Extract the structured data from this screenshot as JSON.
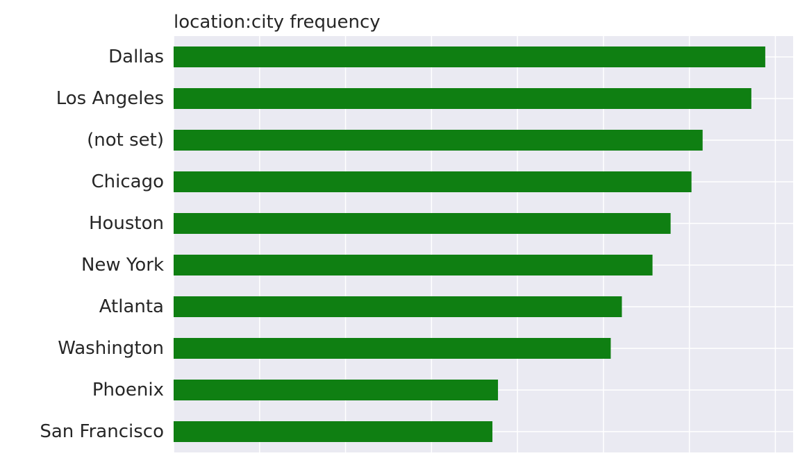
{
  "chart_data": {
    "type": "bar",
    "orientation": "horizontal",
    "title": "location:city frequency",
    "xlabel": "",
    "ylabel": "",
    "categories": [
      "Dallas",
      "Los Angeles",
      "(not set)",
      "Chicago",
      "Houston",
      "New York",
      "Atlanta",
      "Washington",
      "Phoenix",
      "San Francisco"
    ],
    "values": [
      850,
      830,
      760,
      744,
      714,
      688,
      644,
      628,
      466,
      458
    ],
    "xlim": [
      0,
      890
    ],
    "x_tick_values": [
      0,
      123.5,
      247,
      370.5,
      494,
      617.5,
      741,
      864.5
    ],
    "x_tick_labels_shown": false,
    "grid": true,
    "legend": "none",
    "bar_color": "#0f7f12",
    "background_color": "#eaeaf2",
    "grid_color": "#ffffff"
  }
}
